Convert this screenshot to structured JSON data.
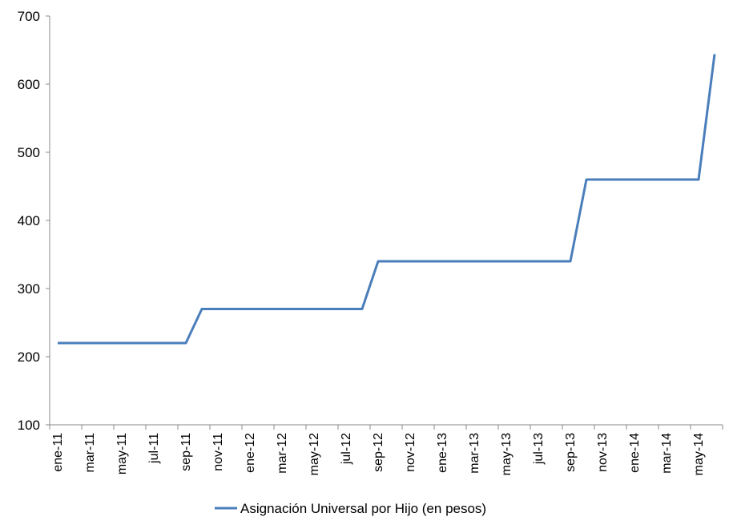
{
  "chart_data": {
    "type": "line",
    "title": "",
    "xlabel": "",
    "ylabel": "",
    "ylim": [
      100,
      700
    ],
    "y_ticks": [
      100,
      200,
      300,
      400,
      500,
      600,
      700
    ],
    "grid": false,
    "legend_position": "bottom",
    "x_tick_labels": [
      "ene-11",
      "mar-11",
      "may-11",
      "jul-11",
      "sep-11",
      "nov-11",
      "ene-12",
      "mar-12",
      "may-12",
      "jul-12",
      "sep-12",
      "nov-12",
      "ene-13",
      "mar-13",
      "may-13",
      "jul-13",
      "sep-13",
      "nov-13",
      "ene-14",
      "mar-14",
      "may-14"
    ],
    "x": [
      "ene-11",
      "feb-11",
      "mar-11",
      "abr-11",
      "may-11",
      "jun-11",
      "jul-11",
      "ago-11",
      "sep-11",
      "oct-11",
      "nov-11",
      "dic-11",
      "ene-12",
      "feb-12",
      "mar-12",
      "abr-12",
      "may-12",
      "jun-12",
      "jul-12",
      "ago-12",
      "sep-12",
      "oct-12",
      "nov-12",
      "dic-12",
      "ene-13",
      "feb-13",
      "mar-13",
      "abr-13",
      "may-13",
      "jun-13",
      "jul-13",
      "ago-13",
      "sep-13",
      "oct-13",
      "nov-13",
      "dic-13",
      "ene-14",
      "feb-14",
      "mar-14",
      "abr-14",
      "may-14",
      "jun-14"
    ],
    "series": [
      {
        "name": "Asignación Universal por Hijo (en pesos)",
        "color": "#4a7ebb",
        "values": [
          220,
          220,
          220,
          220,
          220,
          220,
          220,
          220,
          220,
          270,
          270,
          270,
          270,
          270,
          270,
          270,
          270,
          270,
          270,
          270,
          340,
          340,
          340,
          340,
          340,
          340,
          340,
          340,
          340,
          340,
          340,
          340,
          340,
          460,
          460,
          460,
          460,
          460,
          460,
          460,
          460,
          644
        ]
      }
    ]
  }
}
